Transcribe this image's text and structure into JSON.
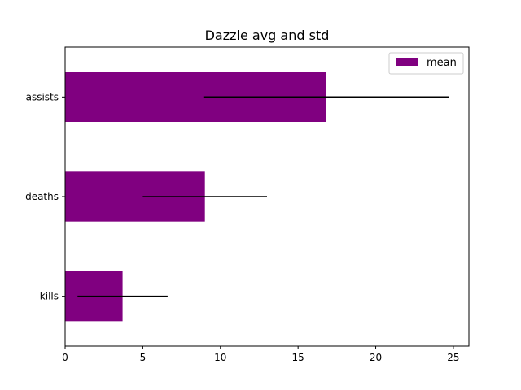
{
  "chart_data": {
    "type": "bar",
    "orientation": "horizontal",
    "title": "Dazzle avg and std",
    "categories": [
      "kills",
      "deaths",
      "assists"
    ],
    "series": [
      {
        "name": "mean",
        "values": [
          3.7,
          9.0,
          16.8
        ],
        "error": [
          2.9,
          4.0,
          7.9
        ],
        "color": "#800080"
      }
    ],
    "xlim": [
      0,
      26
    ],
    "xticks": [
      0,
      5,
      10,
      15,
      20,
      25
    ],
    "grid": false,
    "legend_position": "top-right"
  }
}
